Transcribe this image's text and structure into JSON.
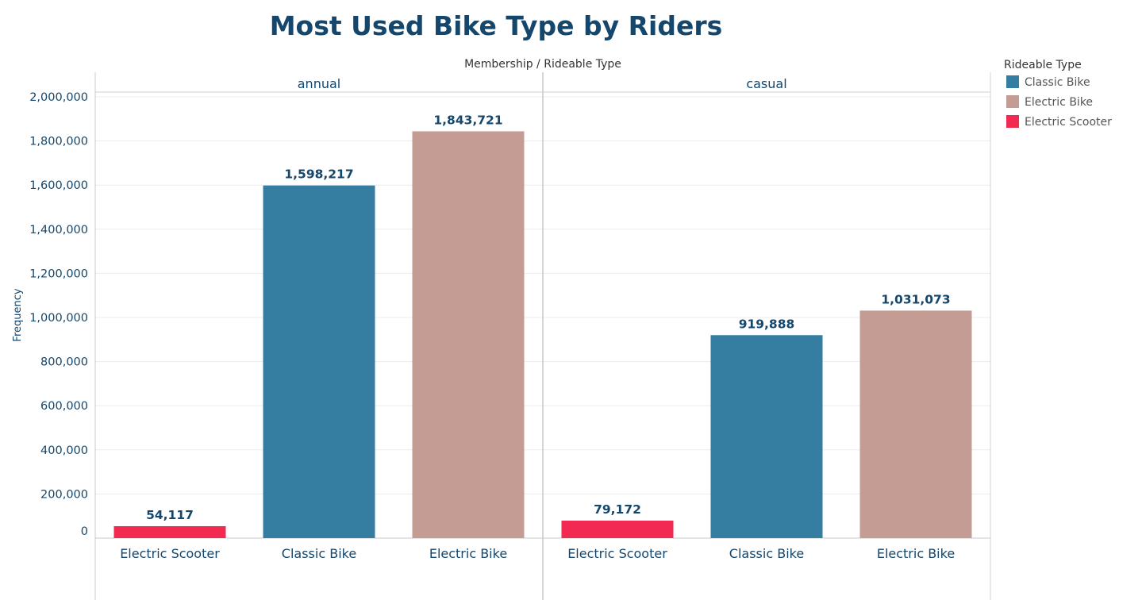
{
  "chart_data": {
    "type": "bar",
    "title": "Most Used Bike Type by Riders",
    "column_header": "Membership / Rideable Type",
    "ylabel": "Frequency",
    "ylim": [
      0,
      2000000
    ],
    "yticks": [
      "0",
      "200,000",
      "400,000",
      "600,000",
      "800,000",
      "1,000,000",
      "1,200,000",
      "1,400,000",
      "1,600,000",
      "1,800,000",
      "2,000,000"
    ],
    "ytick_values": [
      0,
      200000,
      400000,
      600000,
      800000,
      1000000,
      1200000,
      1400000,
      1600000,
      1800000,
      2000000
    ],
    "grid": true,
    "legend_position": "right",
    "legend": {
      "title": "Rideable Type",
      "items": [
        {
          "label": "Classic Bike",
          "color": "#357ea2"
        },
        {
          "label": "Electric Bike",
          "color": "#c49c94"
        },
        {
          "label": "Electric Scooter",
          "color": "#f22951"
        }
      ]
    },
    "panels": [
      {
        "name": "annual",
        "bars": [
          {
            "category": "Electric Scooter",
            "value": 54117,
            "label": "54,117",
            "color": "#f22951"
          },
          {
            "category": "Classic Bike",
            "value": 1598217,
            "label": "1,598,217",
            "color": "#357ea2"
          },
          {
            "category": "Electric Bike",
            "value": 1843721,
            "label": "1,843,721",
            "color": "#c49c94"
          }
        ]
      },
      {
        "name": "casual",
        "bars": [
          {
            "category": "Electric Scooter",
            "value": 79172,
            "label": "79,172",
            "color": "#f22951"
          },
          {
            "category": "Classic Bike",
            "value": 919888,
            "label": "919,888",
            "color": "#357ea2"
          },
          {
            "category": "Electric Bike",
            "value": 1031073,
            "label": "1,031,073",
            "color": "#c49c94"
          }
        ]
      }
    ]
  }
}
